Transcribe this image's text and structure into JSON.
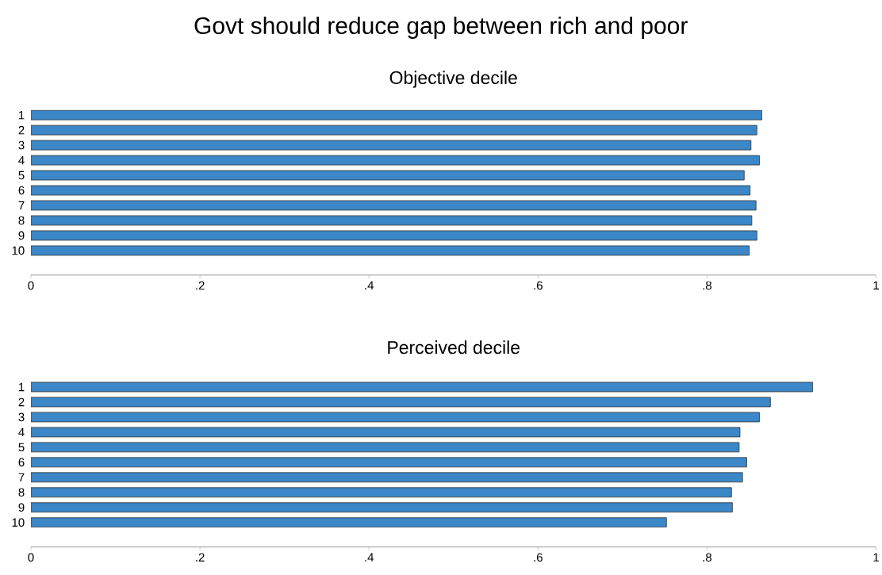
{
  "chart_data": [
    {
      "type": "bar",
      "orientation": "horizontal",
      "title": "Govt should reduce gap between rich and poor",
      "subtitle": "Objective decile",
      "categories": [
        "1",
        "2",
        "3",
        "4",
        "5",
        "6",
        "7",
        "8",
        "9",
        "10"
      ],
      "values": [
        0.865,
        0.859,
        0.852,
        0.862,
        0.844,
        0.851,
        0.858,
        0.853,
        0.859,
        0.85
      ],
      "color": "#3b87c7",
      "xlim": [
        0,
        1
      ],
      "xticks": [
        0,
        {
          "value": 0.2,
          "label": ".2"
        },
        {
          "value": 0.4,
          "label": ".4"
        },
        {
          "value": 0.6,
          "label": ".6"
        },
        {
          "value": 0.8,
          "label": ".8"
        },
        1
      ]
    },
    {
      "type": "bar",
      "orientation": "horizontal",
      "subtitle": "Perceived decile",
      "categories": [
        "1",
        "2",
        "3",
        "4",
        "5",
        "6",
        "7",
        "8",
        "9",
        "10"
      ],
      "values": [
        0.925,
        0.875,
        0.862,
        0.839,
        0.838,
        0.847,
        0.842,
        0.829,
        0.83,
        0.752
      ],
      "color": "#3b87c7",
      "xlim": [
        0,
        1
      ],
      "xticks": [
        0,
        {
          "value": 0.2,
          "label": ".2"
        },
        {
          "value": 0.4,
          "label": ".4"
        },
        {
          "value": 0.6,
          "label": ".6"
        },
        {
          "value": 0.8,
          "label": ".8"
        },
        1
      ]
    }
  ]
}
